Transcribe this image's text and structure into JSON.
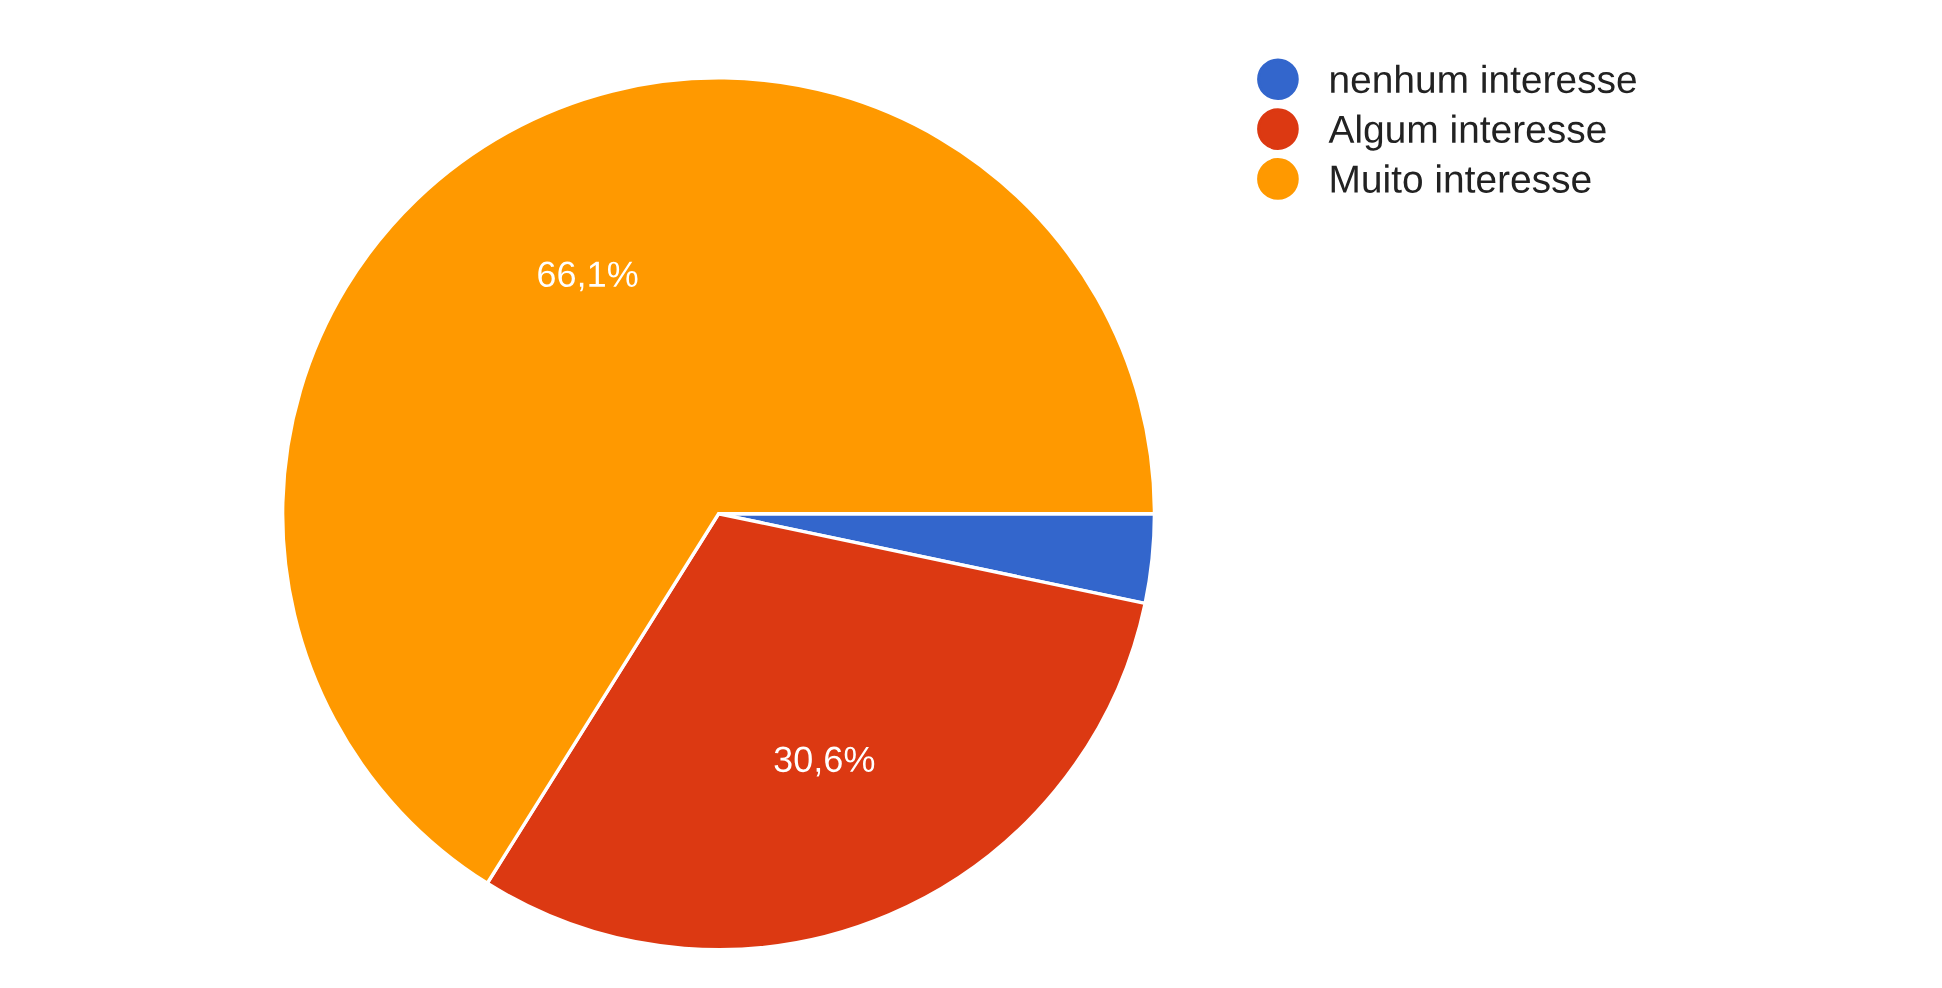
{
  "chart_data": {
    "type": "pie",
    "categories": [
      "nenhum interesse",
      "Algum interesse",
      "Muito interesse"
    ],
    "values": [
      3.3,
      30.6,
      66.1
    ],
    "colors": [
      "#3366cc",
      "#dc3912",
      "#ff9900"
    ],
    "value_labels": [
      null,
      "30,6%",
      "66,1%"
    ],
    "legend": "top right"
  }
}
